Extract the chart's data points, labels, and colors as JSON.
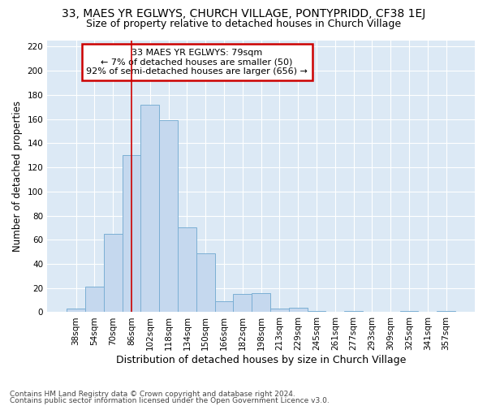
{
  "title": "33, MAES YR EGLWYS, CHURCH VILLAGE, PONTYPRIDD, CF38 1EJ",
  "subtitle": "Size of property relative to detached houses in Church Village",
  "xlabel": "Distribution of detached houses by size in Church Village",
  "ylabel": "Number of detached properties",
  "footnote1": "Contains HM Land Registry data © Crown copyright and database right 2024.",
  "footnote2": "Contains public sector information licensed under the Open Government Licence v3.0.",
  "categories": [
    "38sqm",
    "54sqm",
    "70sqm",
    "86sqm",
    "102sqm",
    "118sqm",
    "134sqm",
    "150sqm",
    "166sqm",
    "182sqm",
    "198sqm",
    "213sqm",
    "229sqm",
    "245sqm",
    "261sqm",
    "277sqm",
    "293sqm",
    "309sqm",
    "325sqm",
    "341sqm",
    "357sqm"
  ],
  "values": [
    3,
    21,
    65,
    130,
    172,
    159,
    70,
    49,
    9,
    15,
    16,
    3,
    4,
    1,
    0,
    1,
    0,
    0,
    1,
    0,
    1
  ],
  "bar_color": "#c5d8ee",
  "bar_edge_color": "#7bafd4",
  "marker_bar_index": 3,
  "marker_line_color": "#cc0000",
  "annotation_text": "33 MAES YR EGLWYS: 79sqm\n← 7% of detached houses are smaller (50)\n92% of semi-detached houses are larger (656) →",
  "annotation_box_facecolor": "#ffffff",
  "annotation_box_edgecolor": "#cc0000",
  "ylim_max": 225,
  "yticks": [
    0,
    20,
    40,
    60,
    80,
    100,
    120,
    140,
    160,
    180,
    200,
    220
  ],
  "fig_bg_color": "#ffffff",
  "plot_bg_color": "#dce9f5",
  "title_fontsize": 10,
  "subtitle_fontsize": 9,
  "axis_label_fontsize": 9,
  "ylabel_fontsize": 8.5,
  "tick_fontsize": 7.5,
  "footnote_fontsize": 6.5,
  "annotation_fontsize": 8
}
